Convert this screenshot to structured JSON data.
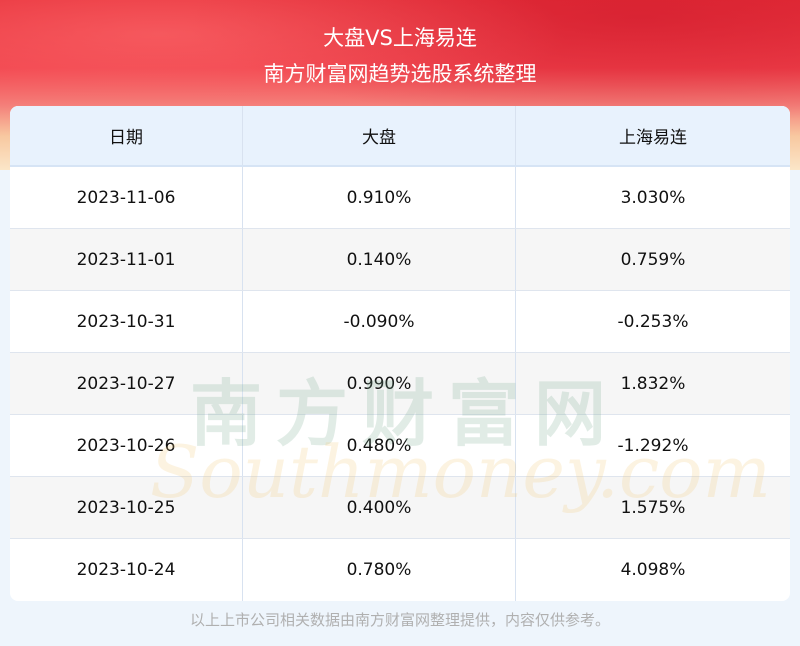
{
  "header": {
    "title": "大盘VS上海易连",
    "subtitle": "南方财富网趋势选股系统整理"
  },
  "table": {
    "columns": [
      "日期",
      "大盘",
      "上海易连"
    ],
    "rows": [
      [
        "2023-11-06",
        "0.910%",
        "3.030%"
      ],
      [
        "2023-11-01",
        "0.140%",
        "0.759%"
      ],
      [
        "2023-10-31",
        "-0.090%",
        "-0.253%"
      ],
      [
        "2023-10-27",
        "0.990%",
        "1.832%"
      ],
      [
        "2023-10-26",
        "0.480%",
        "-1.292%"
      ],
      [
        "2023-10-25",
        "0.400%",
        "1.575%"
      ],
      [
        "2023-10-24",
        "0.780%",
        "4.098%"
      ]
    ]
  },
  "watermark": {
    "cn": "南方财富网",
    "en": "Southmoney.com"
  },
  "footer": {
    "note": "以上上市公司相关数据由南方财富网整理提供，内容仅供参考。"
  },
  "colors": {
    "banner_red": "#e8303a",
    "header_bg": "#e8f2fd",
    "page_bg": "#eef5fc"
  }
}
